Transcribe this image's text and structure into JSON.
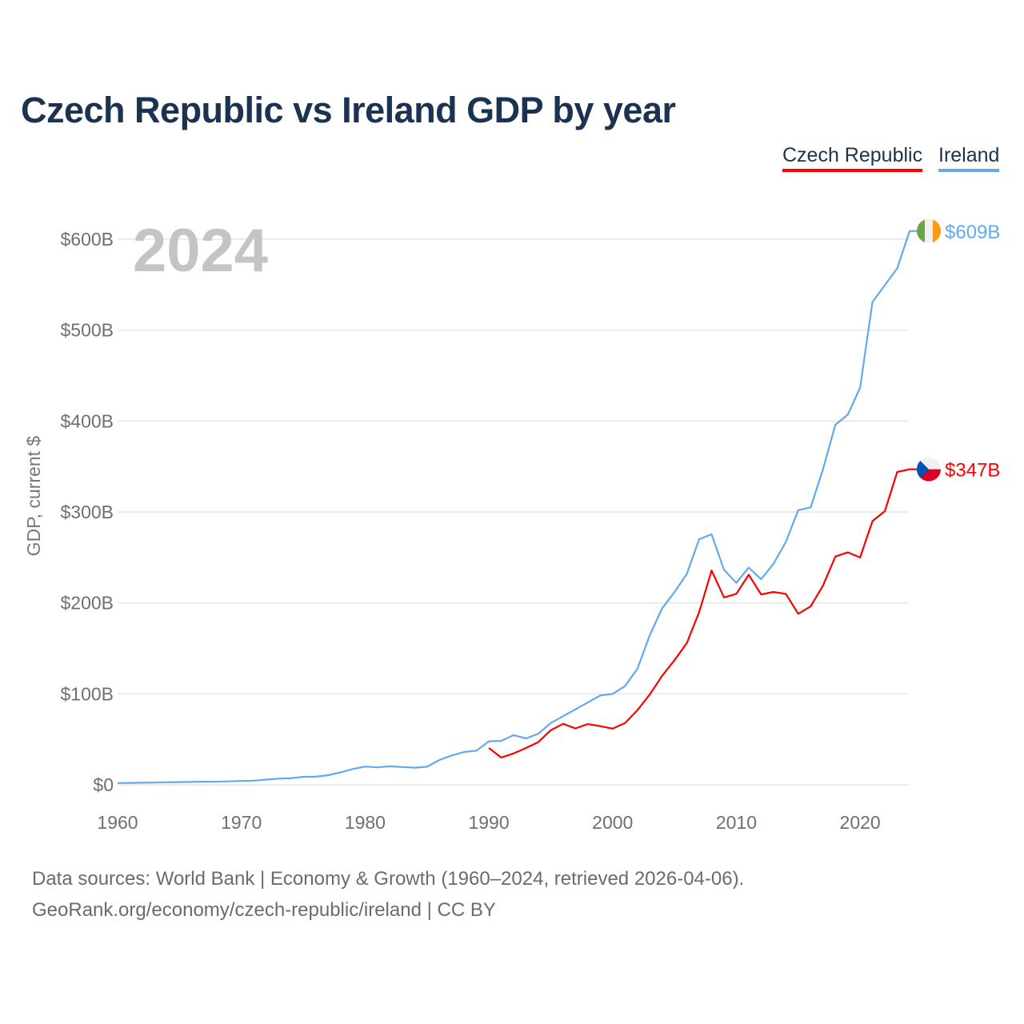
{
  "chart_data": {
    "type": "line",
    "title": "Czech Republic vs Ireland GDP by year",
    "xlabel": "",
    "ylabel": "GDP, current $",
    "xlim": [
      1960,
      2024
    ],
    "ylim": [
      0,
      600
    ],
    "grid": true,
    "legend_placement": "top-right",
    "year_label": "2024",
    "x_ticks": [
      1960,
      1970,
      1980,
      1990,
      2000,
      2010,
      2020
    ],
    "x_tick_labels": [
      "1960",
      "1970",
      "1980",
      "1990",
      "2000",
      "2010",
      "2020"
    ],
    "y_ticks": [
      0,
      100,
      200,
      300,
      400,
      500,
      600
    ],
    "y_tick_labels": [
      "$0",
      "$100B",
      "$200B",
      "$300B",
      "$400B",
      "$500B",
      "$600B"
    ],
    "series": [
      {
        "name": "Czech Republic",
        "color": "#ff0000",
        "end_label": "$347B",
        "flag": "czech-flag",
        "x_start": 1990,
        "values": [
          40.5,
          30,
          34.5,
          40.5,
          47,
          60,
          67,
          62,
          66.8,
          64.5,
          61.8,
          67.8,
          82,
          99.3,
          119.8,
          137,
          156,
          190,
          235.7,
          206,
          210,
          231,
          209.4,
          212,
          210,
          188,
          196.3,
          219,
          251,
          255.7,
          249.9,
          290,
          301,
          344,
          347
        ]
      },
      {
        "name": "Ireland",
        "color": "#63a9ec",
        "end_label": "$609B",
        "flag": "ireland-flag",
        "x_start": 1960,
        "values": [
          1.9,
          2.1,
          2.3,
          2.5,
          2.8,
          3.0,
          3.2,
          3.4,
          3.3,
          3.8,
          4.2,
          4.6,
          5.7,
          6.8,
          7.2,
          8.8,
          8.9,
          10.6,
          13.6,
          17.3,
          20.1,
          19.2,
          20.3,
          19.5,
          18.8,
          19.9,
          27.3,
          32.3,
          36.1,
          37.6,
          47.9,
          48.3,
          54.6,
          51.0,
          56.1,
          67.9,
          75.5,
          83.0,
          90.5,
          98.3,
          99.9,
          108.5,
          127.5,
          164.5,
          193.9,
          211.9,
          232.0,
          270.1,
          275.5,
          236.4,
          222.1,
          238.9,
          226.0,
          243,
          267,
          302,
          305,
          347,
          396,
          407,
          436.8,
          531,
          549.5,
          568,
          609
        ]
      }
    ]
  },
  "footer": {
    "line1": "Data sources: World Bank | Economy & Growth (1960–2024, retrieved 2026-04-06).",
    "line2": "GeoRank.org/economy/czech-republic/ireland | CC BY"
  }
}
